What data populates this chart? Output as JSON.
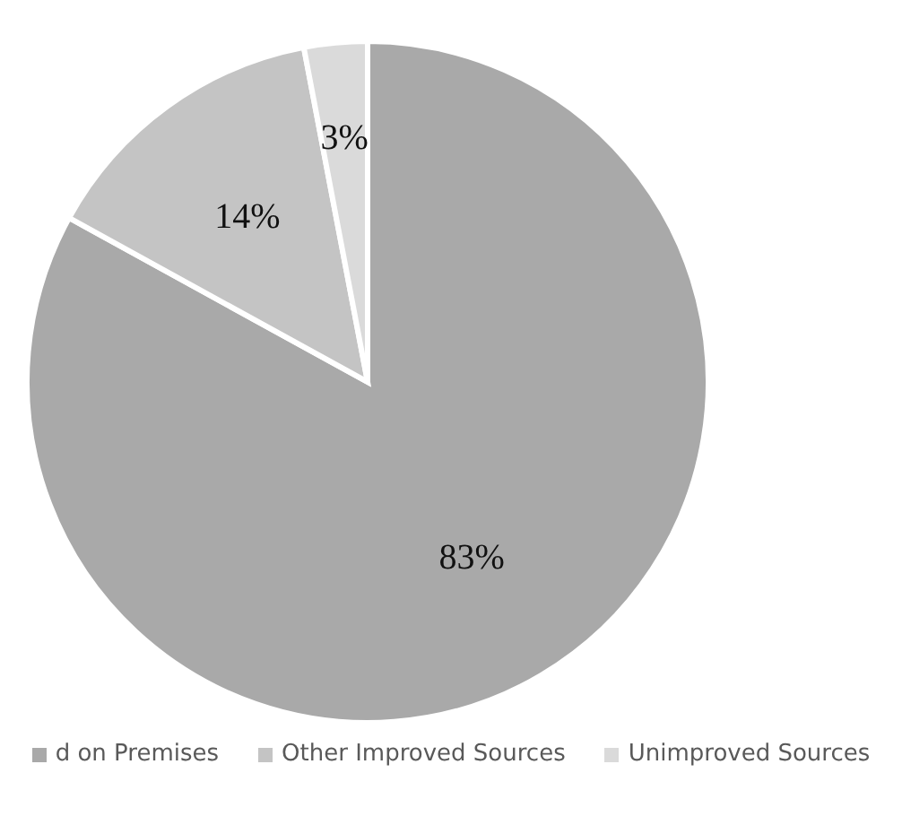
{
  "chart_data": {
    "type": "pie",
    "categories": [
      "d on Premises",
      "Other Improved Sources",
      "Unimproved Sources"
    ],
    "values": [
      83,
      14,
      3
    ],
    "colors": [
      "#a9a9a9",
      "#c4c4c4",
      "#dadada"
    ],
    "value_labels": [
      "83%",
      "14%",
      "3%"
    ],
    "legend": "bottom"
  }
}
